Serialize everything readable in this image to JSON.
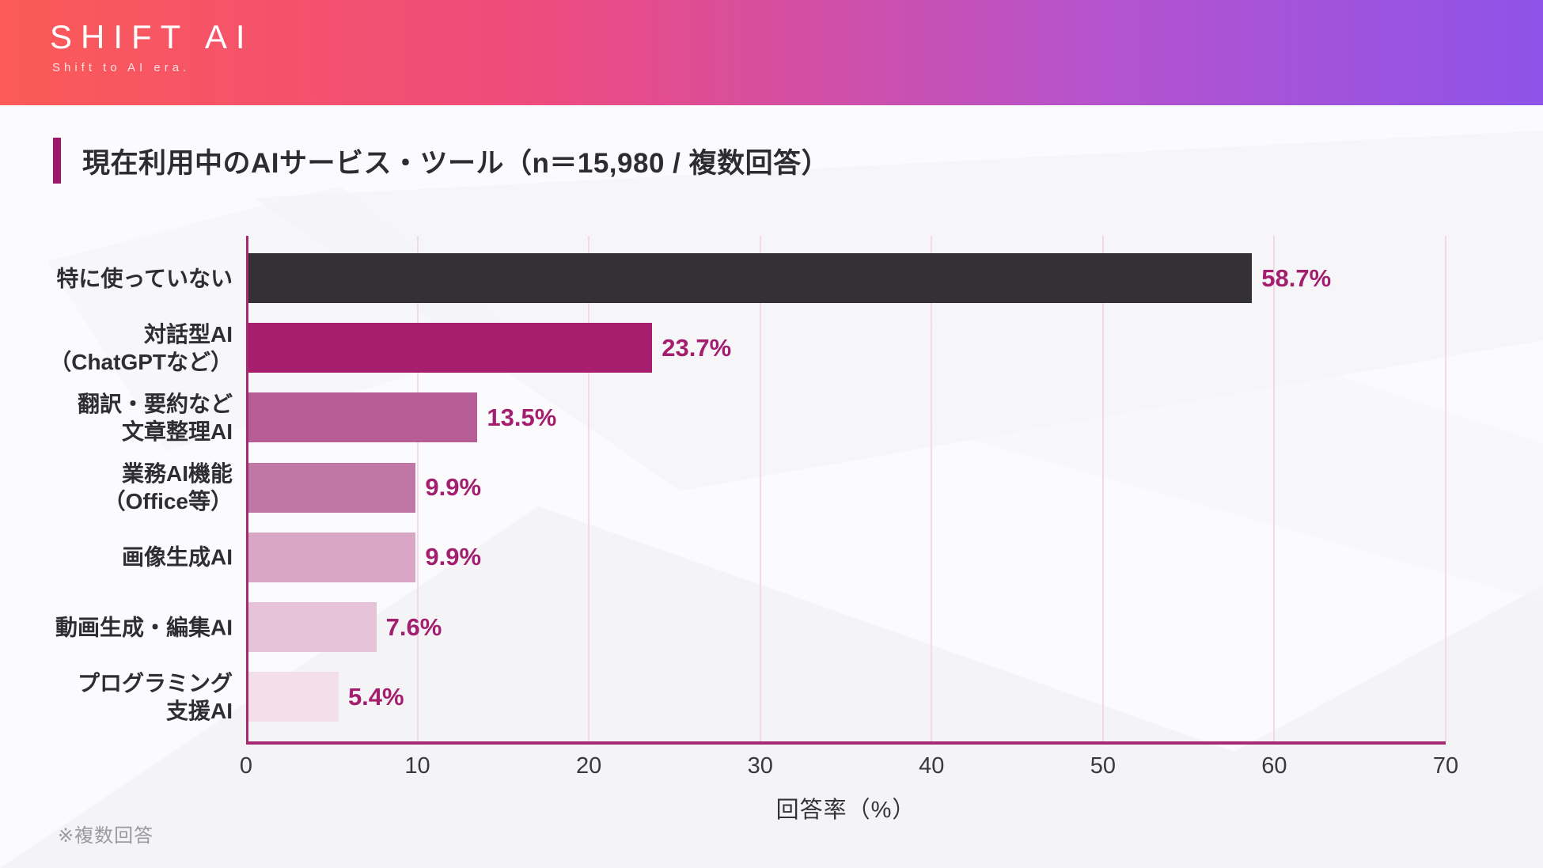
{
  "header": {
    "logo": "SHIFT AI",
    "tagline": "Shift to AI era."
  },
  "title": {
    "text": "現在利用中のAIサービス・ツール（n＝15,980 / 複数回答）"
  },
  "footnote": "※複数回答",
  "chart_data": {
    "type": "bar",
    "orientation": "horizontal",
    "title": "現在利用中のAIサービス・ツール（n＝15,980 / 複数回答）",
    "categories": [
      "特に使っていない",
      "対話型AI\n（ChatGPTなど）",
      "翻訳・要約など\n文章整理AI",
      "業務AI機能\n（Office等）",
      "画像生成AI",
      "動画生成・編集AI",
      "プログラミング\n支援AI"
    ],
    "values": [
      58.7,
      23.7,
      13.5,
      9.9,
      9.9,
      7.6,
      5.4
    ],
    "value_labels": [
      "58.7%",
      "23.7%",
      "13.5%",
      "9.9%",
      "9.9%",
      "7.6%",
      "5.4%"
    ],
    "bar_colors": [
      "#343136",
      "#a81e6e",
      "#b75d96",
      "#c077a5",
      "#d9a6c6",
      "#e6c3d8",
      "#f2dfea"
    ],
    "xlabel": "回答率（%）",
    "xlim": [
      0,
      70
    ],
    "xticks": [
      "0",
      "10",
      "20",
      "30",
      "40",
      "50",
      "60",
      "70"
    ],
    "grid": true,
    "legend": false,
    "value_label_color": "#a41e6e",
    "axis_color": "#a62a72",
    "gridline_color": "#f2d9e5"
  }
}
